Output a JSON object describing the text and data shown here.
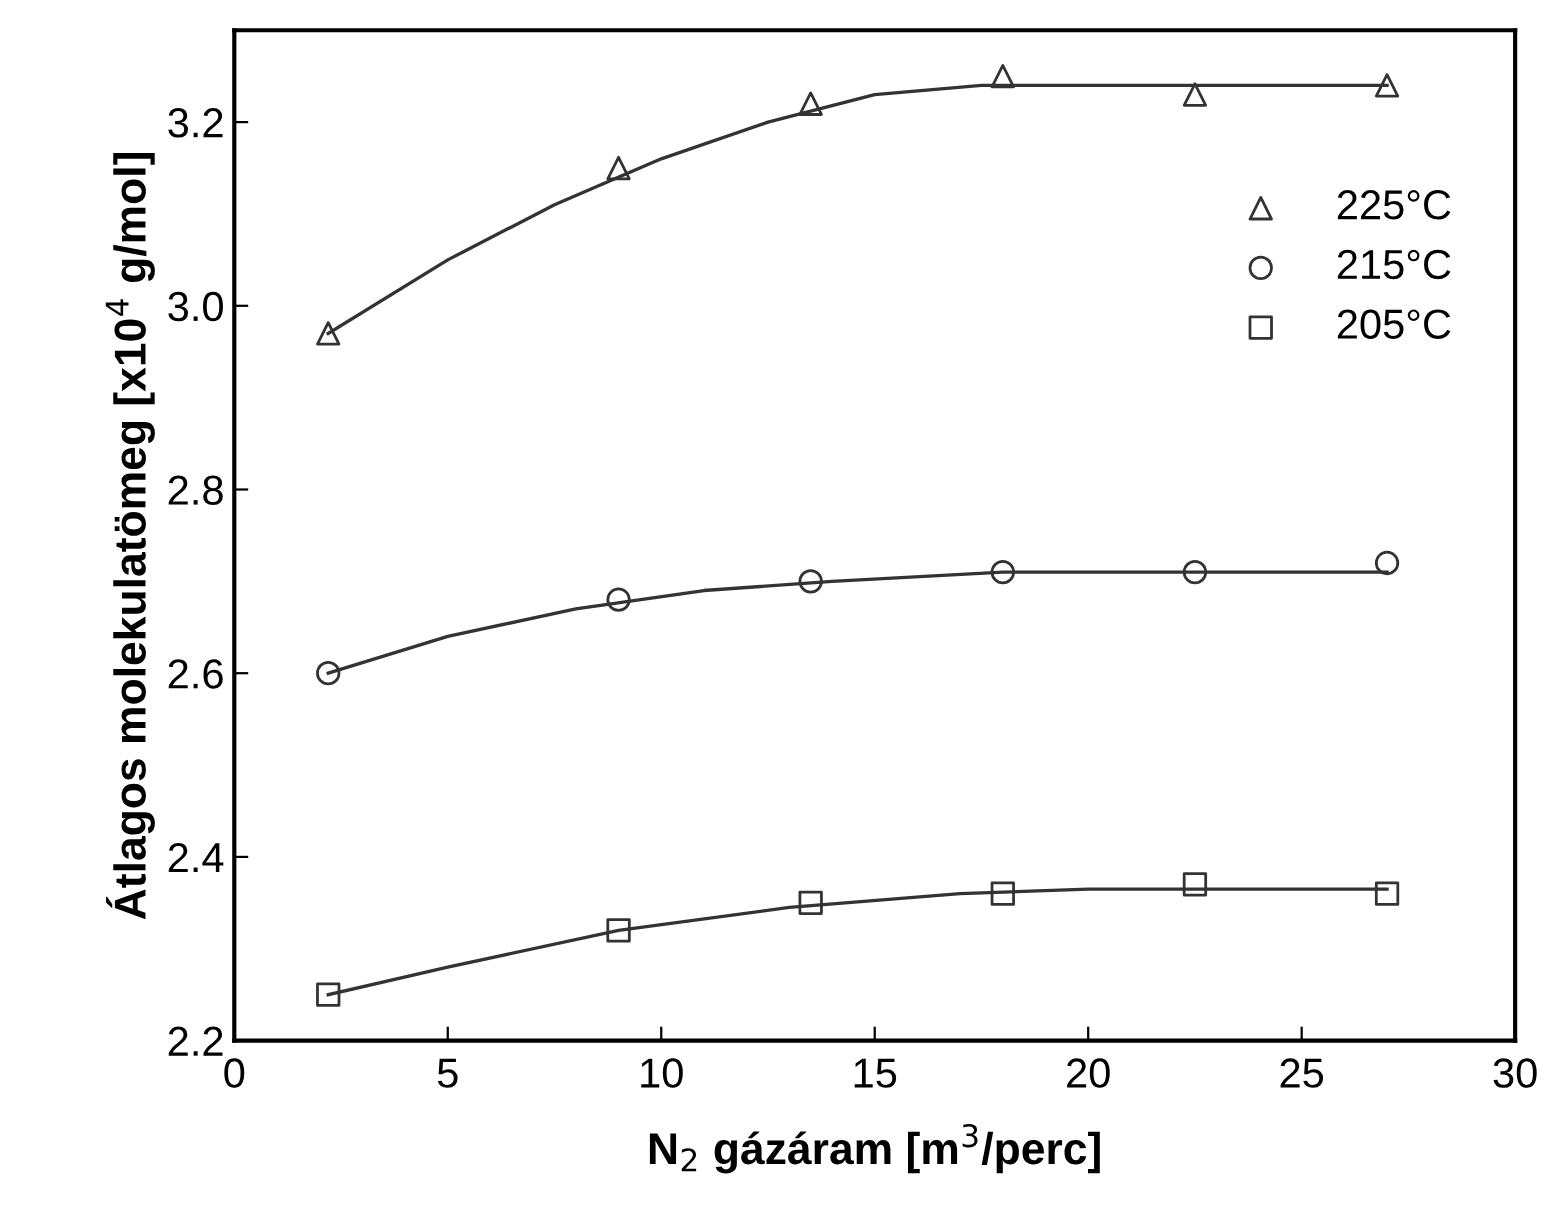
{
  "chart_data": {
    "type": "scatter",
    "xlabel": "N$_{2}$ gázáram [m$^{3}$/perc]",
    "ylabel": "Átlagos molekulatömeg [x10$^{4}$ g/mol]",
    "xlim": [
      0,
      30
    ],
    "xticks": [
      0,
      5,
      10,
      15,
      20,
      25,
      30
    ],
    "ylim": [
      2.2,
      3.3
    ],
    "yticks": [
      {
        "value": 2.2,
        "label": "2.2"
      },
      {
        "value": 2.4,
        "label": "2.4"
      },
      {
        "value": 2.6,
        "label": "2.6"
      },
      {
        "value": 2.8,
        "label": "2.8"
      },
      {
        "value": 3.0,
        "label": "3.0"
      },
      {
        "value": 3.2,
        "label": "3.2"
      }
    ],
    "x": [
      2.2,
      9,
      13.5,
      18,
      22.5,
      27
    ],
    "grid": false,
    "legend": "top right",
    "series": [
      {
        "name": "225°C",
        "color": "#333333",
        "marker": "triangle",
        "values": [
          2.97,
          3.15,
          3.22,
          3.25,
          3.23,
          3.24
        ]
      },
      {
        "name": "215°C",
        "color": "#333333",
        "marker": "circle",
        "values": [
          2.6,
          2.68,
          2.7,
          2.71,
          2.71,
          2.72
        ]
      },
      {
        "name": "205°C",
        "color": "#333333",
        "marker": "square",
        "values": [
          2.25,
          2.32,
          2.35,
          2.36,
          2.37,
          2.36
        ]
      },
      {
        "type": "line",
        "color": "#333333",
        "marker": "none",
        "line_style": "solid",
        "x": [
          2.2,
          5,
          7.5,
          10,
          12.5,
          15,
          17.5,
          20,
          25,
          27
        ],
        "values": [
          2.97,
          3.05,
          3.11,
          3.16,
          3.2,
          3.23,
          3.24,
          3.24,
          3.24,
          3.24
        ]
      },
      {
        "type": "line",
        "color": "#333333",
        "marker": "none",
        "line_style": "solid",
        "x": [
          2.2,
          5,
          8,
          11,
          14,
          18,
          27
        ],
        "values": [
          2.6,
          2.64,
          2.67,
          2.69,
          2.7,
          2.71,
          2.71
        ]
      },
      {
        "type": "line",
        "color": "#333333",
        "marker": "none",
        "line_style": "solid",
        "x": [
          2.2,
          5,
          9,
          13,
          17,
          20,
          27
        ],
        "values": [
          2.25,
          2.28,
          2.32,
          2.345,
          2.36,
          2.365,
          2.365
        ]
      }
    ]
  }
}
